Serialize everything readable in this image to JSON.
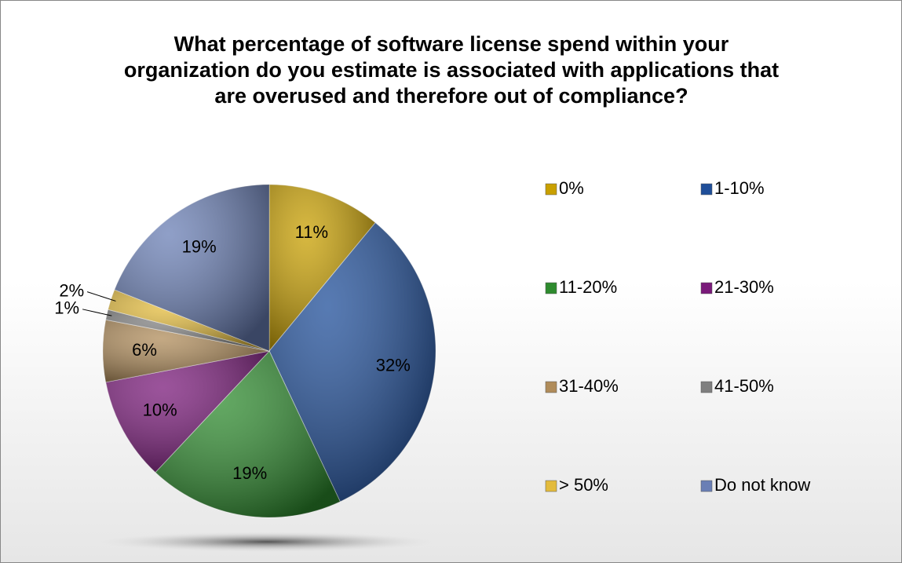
{
  "chart_data": {
    "type": "pie",
    "title": "What percentage of software license spend within your organization do you estimate is associated with applications that are overused and therefore out of compliance?",
    "categories": [
      "0%",
      "1-10%",
      "11-20%",
      "21-30%",
      "31-40%",
      "41-50%",
      "> 50%",
      "Do not know"
    ],
    "values": [
      11,
      32,
      19,
      10,
      6,
      1,
      2,
      19
    ],
    "value_labels": [
      "11%",
      "32%",
      "19%",
      "10%",
      "6%",
      "1%",
      "2%",
      "19%"
    ],
    "colors": [
      "#c9a000",
      "#1f4e99",
      "#2e8b2e",
      "#7a1a7a",
      "#b08c5a",
      "#7f7f7f",
      "#e3bb3c",
      "#6a7fb5"
    ],
    "legend": "right"
  }
}
